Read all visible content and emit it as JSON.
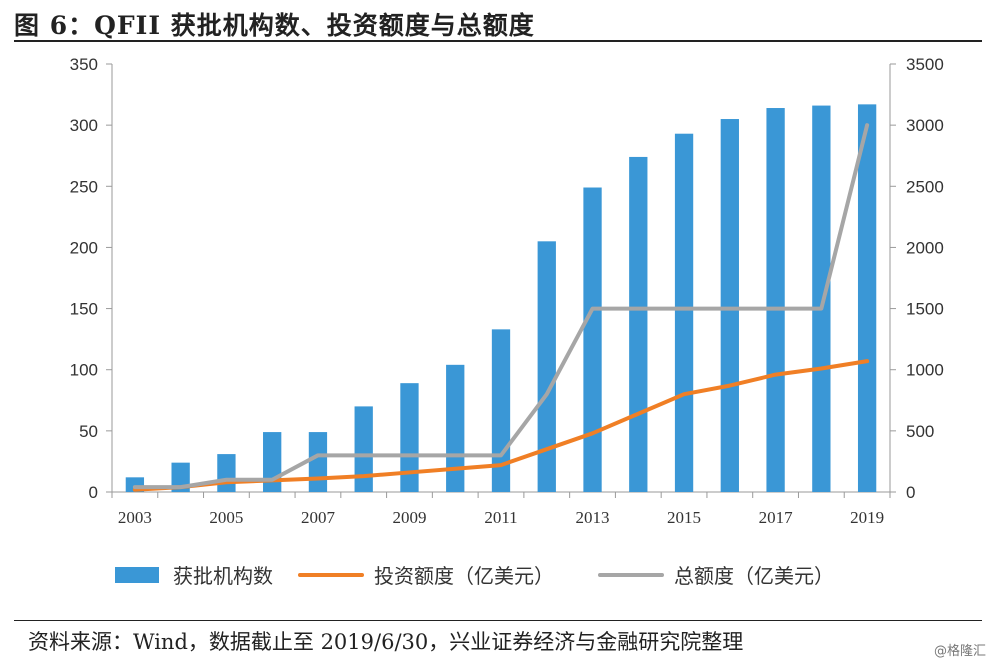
{
  "figure_title": "图 6：QFII 获批机构数、投资额度与总额度",
  "source": "资料来源：Wind，数据截止至 2019/6/30，兴业证券经济与金融研究院整理",
  "watermark": "@格隆汇",
  "chart_data": {
    "type": "bar",
    "x_years": [
      2003,
      2004,
      2005,
      2006,
      2007,
      2008,
      2009,
      2010,
      2011,
      2012,
      2013,
      2014,
      2015,
      2016,
      2017,
      2018,
      2019
    ],
    "x_tick_labels": [
      "2003",
      "2005",
      "2007",
      "2009",
      "2011",
      "2013",
      "2015",
      "2017",
      "2019"
    ],
    "left_axis": {
      "ylim": [
        0,
        350
      ],
      "ticks": [
        0,
        50,
        100,
        150,
        200,
        250,
        300,
        350
      ]
    },
    "right_axis": {
      "ylim": [
        0,
        3500
      ],
      "ticks": [
        0,
        500,
        1000,
        1500,
        2000,
        2500,
        3000,
        3500
      ]
    },
    "series": [
      {
        "name": "获批机构数",
        "kind": "bar",
        "axis": "left",
        "color": "#3a97d6",
        "values": [
          12,
          24,
          31,
          49,
          49,
          70,
          89,
          104,
          133,
          205,
          249,
          274,
          293,
          305,
          314,
          316,
          317
        ]
      },
      {
        "name": "投资额度（亿美元）",
        "kind": "line",
        "axis": "right",
        "color": "#f07f25",
        "values": [
          18,
          40,
          80,
          95,
          110,
          130,
          160,
          190,
          220,
          350,
          480,
          640,
          800,
          870,
          960,
          1010,
          1070
        ]
      },
      {
        "name": "总额度（亿美元）",
        "kind": "line",
        "axis": "right",
        "color": "#a6a6a6",
        "values": [
          40,
          40,
          100,
          100,
          300,
          300,
          300,
          300,
          300,
          800,
          1500,
          1500,
          1500,
          1500,
          1500,
          1500,
          3000
        ]
      }
    ],
    "legend_position": "bottom",
    "grid": false
  }
}
